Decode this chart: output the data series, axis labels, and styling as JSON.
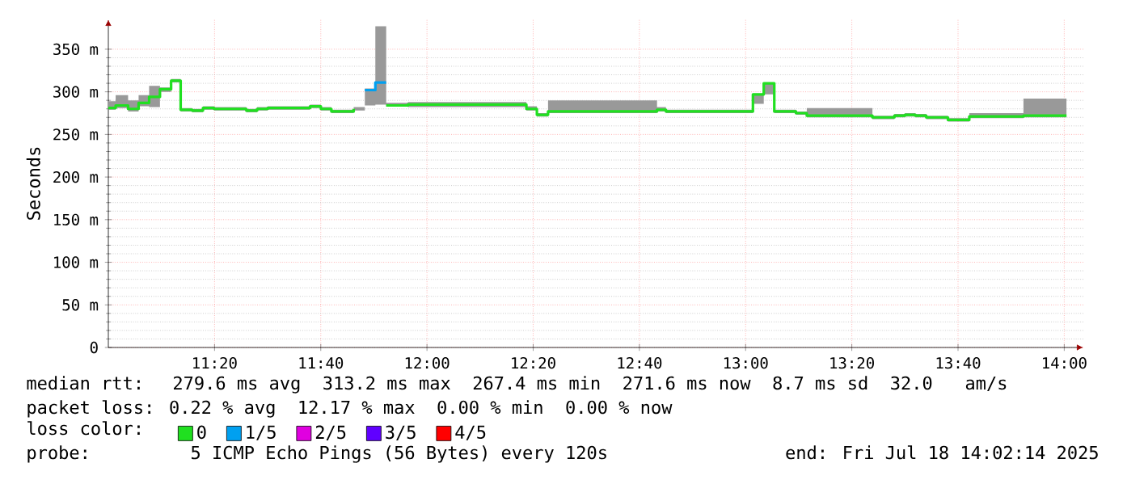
{
  "chart_data": {
    "type": "step",
    "ylabel": "Seconds",
    "xlim": [
      11.0,
      14.06
    ],
    "ylim": [
      0,
      385
    ],
    "xticks": [
      {
        "value": 11.3333,
        "label": "11:20"
      },
      {
        "value": 11.6667,
        "label": "11:40"
      },
      {
        "value": 12,
        "label": "12:00"
      },
      {
        "value": 12.3333,
        "label": "12:20"
      },
      {
        "value": 12.6667,
        "label": "12:40"
      },
      {
        "value": 13,
        "label": "13:00"
      },
      {
        "value": 13.3333,
        "label": "13:20"
      },
      {
        "value": 13.6667,
        "label": "13:40"
      },
      {
        "value": 14,
        "label": "14:00"
      }
    ],
    "yticks": [
      0,
      {
        "value": 50,
        "label": "50 m"
      },
      {
        "value": 100,
        "label": "100 m"
      },
      {
        "value": 150,
        "label": "150 m"
      },
      {
        "value": 200,
        "label": "200 m"
      },
      {
        "value": 250,
        "label": "250 m"
      },
      {
        "value": 300,
        "label": "300 m"
      },
      {
        "value": 350,
        "label": "350 m"
      }
    ],
    "grid": true,
    "legend": "bottom",
    "series": [
      {
        "name": "0",
        "color": "#20e020",
        "x": [
          11.0,
          11.023,
          11.062,
          11.095,
          11.128,
          11.162,
          11.197,
          11.227,
          11.263,
          11.297,
          11.332,
          11.433,
          11.467,
          11.5,
          11.633,
          11.667,
          11.7,
          11.77,
          11.805,
          11.838,
          11.872,
          11.94,
          12.312,
          12.345,
          12.38,
          12.722,
          12.75,
          13.023,
          13.057,
          13.09,
          13.158,
          13.192,
          13.398,
          13.467,
          13.5,
          13.533,
          13.567,
          13.635,
          13.702,
          13.872,
          14.007
        ],
        "values": [
          281,
          284,
          280,
          287,
          294,
          303,
          313,
          279,
          278,
          281,
          280,
          278,
          280,
          281,
          283,
          280,
          277,
          280,
          null,
          null,
          284,
          285,
          280,
          273,
          277,
          279,
          277,
          297,
          310,
          277,
          275,
          272,
          270,
          272,
          273,
          272,
          270,
          267,
          271,
          272,
          272
        ],
        "lower": [
          279,
          281,
          277,
          283,
          282,
          300,
          311,
          277,
          276,
          279,
          278,
          276,
          278,
          279,
          281,
          278,
          275,
          278,
          284,
          285,
          283,
          282,
          278,
          271,
          275,
          277,
          275,
          286,
          297,
          275,
          273,
          270,
          268,
          270,
          271,
          270,
          268,
          265,
          269,
          270,
          270
        ],
        "upper": [
          289,
          296,
          290,
          296,
          307,
          305,
          315,
          281,
          280,
          283,
          282,
          280,
          282,
          283,
          285,
          282,
          279,
          282,
          304,
          377,
          287,
          288,
          283,
          275,
          290,
          282,
          279,
          298,
          311,
          279,
          277,
          281,
          272,
          274,
          275,
          274,
          272,
          269,
          275,
          292,
          292
        ]
      },
      {
        "name": "1/5",
        "color": "#00a0f0",
        "x": [
          11.805,
          11.838,
          11.872
        ],
        "values": [
          302,
          311,
          311
        ]
      },
      {
        "name": "2/5",
        "color": "#e000e0"
      },
      {
        "name": "3/5",
        "color": "#6000ff"
      },
      {
        "name": "4/5",
        "color": "#ff0000"
      }
    ],
    "annotations": [
      "median rtt:  279.6 ms avg  313.2 ms max  267.4 ms min  271.6 ms now  8.7 ms sd  32.0   am/s",
      "packet loss: 0.22 % avg  12.17 % max  0.00 % min  0.00 % now",
      "loss color:",
      "probe:       5 ICMP Echo Pings (56 Bytes) every 120s",
      "end: Fri Jul 18 14:02:14 2025"
    ]
  }
}
